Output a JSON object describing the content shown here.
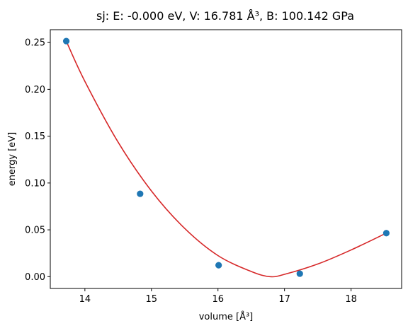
{
  "chart_data": {
    "type": "scatter",
    "title": "sj: E: -0.000 eV, V: 16.781 Å³, B: 100.142 GPa",
    "xlabel": "volume [Å³]",
    "ylabel": "energy [eV]",
    "xlim": [
      13.48,
      18.76
    ],
    "ylim": [
      -0.0126,
      0.2637
    ],
    "xticks": [
      14,
      15,
      16,
      17,
      18
    ],
    "xtick_labels": [
      "14",
      "15",
      "16",
      "17",
      "18"
    ],
    "yticks": [
      0.0,
      0.05,
      0.1,
      0.15,
      0.2,
      0.25
    ],
    "ytick_labels": [
      "0.00",
      "0.05",
      "0.10",
      "0.15",
      "0.20",
      "0.25"
    ],
    "grid": false,
    "series": [
      {
        "kind": "points",
        "color": "#1f77b4",
        "x": [
          13.72,
          14.83,
          16.01,
          17.23,
          18.53
        ],
        "y": [
          0.2515,
          0.0885,
          0.0122,
          0.0032,
          0.0465
        ]
      },
      {
        "kind": "fit-curve",
        "color": "#d62728",
        "x": [
          13.72,
          14.0,
          14.5,
          15.0,
          15.5,
          16.0,
          16.5,
          16.781,
          17.0,
          17.5,
          18.0,
          18.53
        ],
        "y": [
          0.2515,
          0.2085,
          0.1435,
          0.0915,
          0.0515,
          0.0225,
          0.0055,
          0.0,
          0.0025,
          0.0135,
          0.0285,
          0.0465
        ]
      }
    ],
    "minimum": {
      "x": 16.781,
      "y": 0.0
    }
  }
}
